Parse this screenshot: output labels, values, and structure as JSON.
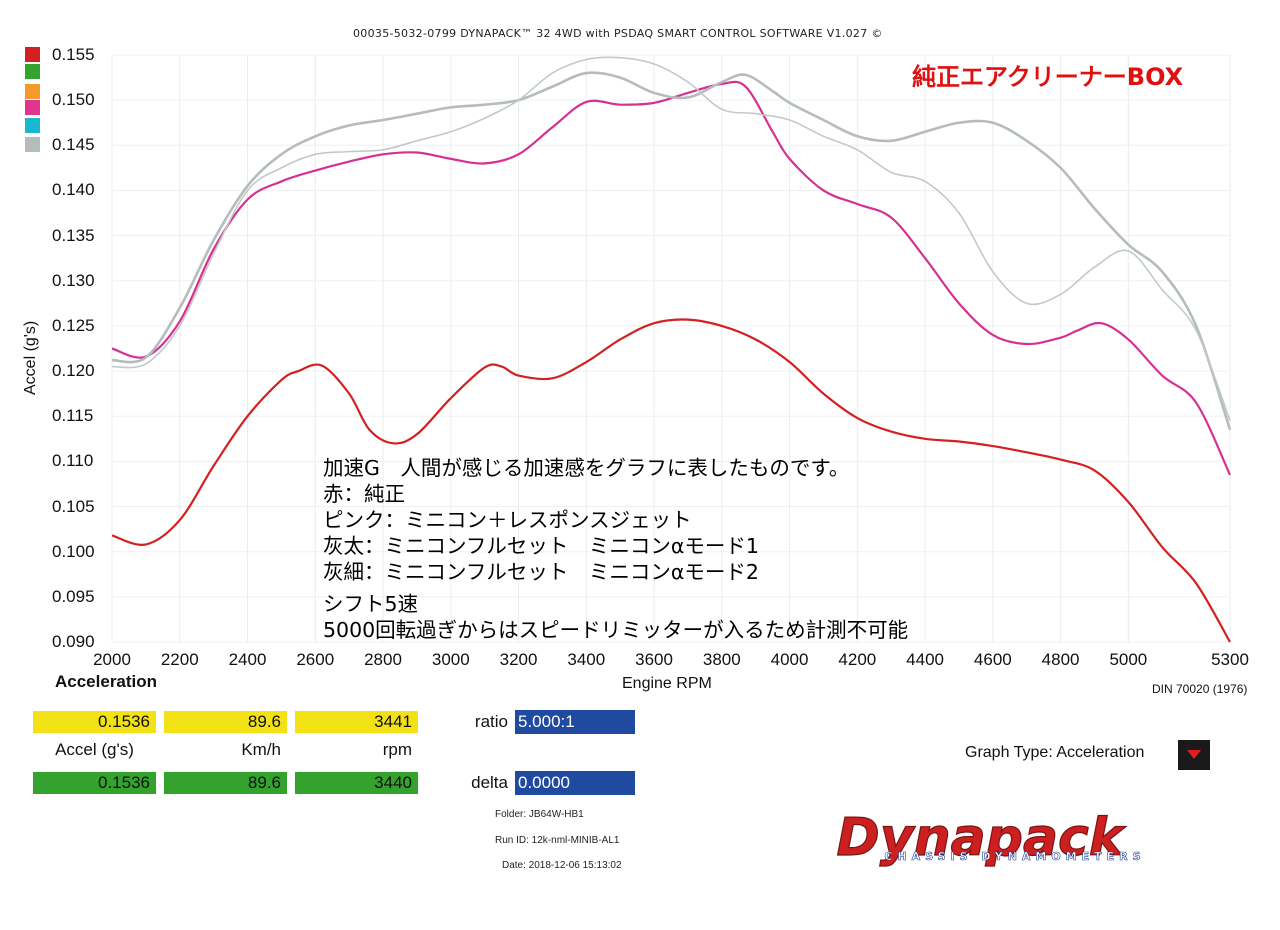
{
  "header": {
    "software": "00035-5032-0799 DYNAPACK™ 32 4WD with PSDAQ SMART CONTROL SOFTWARE V1.027 ©",
    "box_title": "純正エアクリーナーBOX"
  },
  "legend_colors": [
    "#d42020",
    "#33a32e",
    "#f39a2b",
    "#e0358f",
    "#18b8d0",
    "#b4bcbc"
  ],
  "notes": [
    "加速G　人間が感じる加速感をグラフに表したものです。",
    "赤：純正",
    "ピンク：ミニコン＋レスポンスジェット",
    "灰太：ミニコンフルセット　ミニコンαモード1",
    "灰細：ミニコンフルセット　ミニコンαモード2",
    "シフト5速",
    "5000回転過ぎからはスピードリミッターが入るため計測不可能"
  ],
  "readout": {
    "section_label": "Acceleration",
    "row1": {
      "accel": "0.1536",
      "kmh": "89.6",
      "rpm": "3441"
    },
    "row2": {
      "accel": "0.1536",
      "kmh": "89.6",
      "rpm": "3440"
    },
    "units": {
      "accel": "Accel (g's)",
      "kmh": "Km/h",
      "rpm": "rpm"
    },
    "ratio_label": "ratio",
    "ratio_value": "5.000:1",
    "delta_label": "delta",
    "delta_value": "0.0000",
    "folder": "Folder:  JB64W-HB1",
    "run_id": "Run ID:  12k-nml-MINIB-AL1",
    "date": "Date:  2018-12-06 15:13:02"
  },
  "graph_type_label": "Graph Type: Acceleration",
  "standard": "DIN 70020 (1976)",
  "logo": {
    "main": "Dynapack",
    "sub": "CHASSIS DYNAMOMETERS"
  },
  "chart_data": {
    "type": "line",
    "xlabel": "Engine RPM",
    "ylabel": "Accel (g's)",
    "xlim": [
      2000,
      5300
    ],
    "ylim": [
      0.09,
      0.155
    ],
    "x_ticks": [
      2000,
      2200,
      2400,
      2600,
      2800,
      3000,
      3200,
      3400,
      3600,
      3800,
      4000,
      4200,
      4400,
      4600,
      4800,
      5000,
      5300
    ],
    "y_ticks": [
      "0.155",
      "0.150",
      "0.145",
      "0.140",
      "0.135",
      "0.130",
      "0.125",
      "0.120",
      "0.115",
      "0.110",
      "0.105",
      "0.100",
      "0.095",
      "0.090"
    ],
    "grid": true,
    "series": [
      {
        "color": "#d42020",
        "width": 2.2,
        "points": [
          [
            2000,
            0.1018
          ],
          [
            2100,
            0.1008
          ],
          [
            2200,
            0.1035
          ],
          [
            2300,
            0.1095
          ],
          [
            2400,
            0.115
          ],
          [
            2500,
            0.119
          ],
          [
            2550,
            0.12
          ],
          [
            2620,
            0.1206
          ],
          [
            2700,
            0.1175
          ],
          [
            2760,
            0.1135
          ],
          [
            2830,
            0.112
          ],
          [
            2900,
            0.113
          ],
          [
            3000,
            0.117
          ],
          [
            3100,
            0.1204
          ],
          [
            3150,
            0.1205
          ],
          [
            3200,
            0.1195
          ],
          [
            3300,
            0.1192
          ],
          [
            3400,
            0.121
          ],
          [
            3500,
            0.1235
          ],
          [
            3600,
            0.1253
          ],
          [
            3700,
            0.1257
          ],
          [
            3800,
            0.125
          ],
          [
            3900,
            0.1235
          ],
          [
            4000,
            0.121
          ],
          [
            4100,
            0.1175
          ],
          [
            4200,
            0.1148
          ],
          [
            4300,
            0.1133
          ],
          [
            4400,
            0.1125
          ],
          [
            4500,
            0.1122
          ],
          [
            4600,
            0.1117
          ],
          [
            4700,
            0.111
          ],
          [
            4800,
            0.1102
          ],
          [
            4900,
            0.109
          ],
          [
            5000,
            0.1055
          ],
          [
            5100,
            0.1005
          ],
          [
            5200,
            0.0965
          ],
          [
            5300,
            0.09
          ]
        ]
      },
      {
        "color": "#d63191",
        "width": 2.2,
        "points": [
          [
            2000,
            0.1225
          ],
          [
            2100,
            0.1216
          ],
          [
            2200,
            0.1255
          ],
          [
            2300,
            0.1335
          ],
          [
            2400,
            0.139
          ],
          [
            2500,
            0.141
          ],
          [
            2600,
            0.1422
          ],
          [
            2700,
            0.1432
          ],
          [
            2800,
            0.144
          ],
          [
            2900,
            0.1442
          ],
          [
            3000,
            0.1435
          ],
          [
            3100,
            0.143
          ],
          [
            3200,
            0.144
          ],
          [
            3300,
            0.147
          ],
          [
            3400,
            0.1498
          ],
          [
            3500,
            0.1495
          ],
          [
            3600,
            0.1497
          ],
          [
            3700,
            0.1508
          ],
          [
            3800,
            0.1518
          ],
          [
            3870,
            0.1515
          ],
          [
            3950,
            0.1465
          ],
          [
            4000,
            0.1435
          ],
          [
            4100,
            0.14
          ],
          [
            4200,
            0.1385
          ],
          [
            4300,
            0.137
          ],
          [
            4400,
            0.1325
          ],
          [
            4500,
            0.1275
          ],
          [
            4600,
            0.124
          ],
          [
            4700,
            0.123
          ],
          [
            4800,
            0.1237
          ],
          [
            4850,
            0.1245
          ],
          [
            4920,
            0.1253
          ],
          [
            5000,
            0.1235
          ],
          [
            5100,
            0.1195
          ],
          [
            5200,
            0.1165
          ],
          [
            5300,
            0.1085
          ]
        ]
      },
      {
        "color": "#b4bcbc",
        "width": 2.6,
        "points": [
          [
            2000,
            0.1212
          ],
          [
            2100,
            0.1215
          ],
          [
            2200,
            0.127
          ],
          [
            2300,
            0.1345
          ],
          [
            2400,
            0.1405
          ],
          [
            2500,
            0.144
          ],
          [
            2600,
            0.146
          ],
          [
            2700,
            0.1472
          ],
          [
            2800,
            0.1478
          ],
          [
            2900,
            0.1485
          ],
          [
            3000,
            0.1492
          ],
          [
            3100,
            0.1495
          ],
          [
            3200,
            0.15
          ],
          [
            3300,
            0.1515
          ],
          [
            3400,
            0.153
          ],
          [
            3500,
            0.1525
          ],
          [
            3600,
            0.1508
          ],
          [
            3700,
            0.1503
          ],
          [
            3800,
            0.152
          ],
          [
            3870,
            0.1528
          ],
          [
            3950,
            0.151
          ],
          [
            4000,
            0.1497
          ],
          [
            4100,
            0.1478
          ],
          [
            4200,
            0.146
          ],
          [
            4300,
            0.1455
          ],
          [
            4400,
            0.1465
          ],
          [
            4500,
            0.1475
          ],
          [
            4600,
            0.1475
          ],
          [
            4700,
            0.1455
          ],
          [
            4800,
            0.1425
          ],
          [
            4900,
            0.138
          ],
          [
            5000,
            0.134
          ],
          [
            5100,
            0.131
          ],
          [
            5200,
            0.125
          ],
          [
            5300,
            0.1135
          ]
        ]
      },
      {
        "color": "#c3c9c9",
        "width": 1.6,
        "points": [
          [
            2000,
            0.1205
          ],
          [
            2100,
            0.1208
          ],
          [
            2200,
            0.125
          ],
          [
            2300,
            0.133
          ],
          [
            2400,
            0.14
          ],
          [
            2500,
            0.1425
          ],
          [
            2600,
            0.144
          ],
          [
            2700,
            0.1443
          ],
          [
            2800,
            0.1445
          ],
          [
            2900,
            0.1455
          ],
          [
            3000,
            0.1465
          ],
          [
            3100,
            0.148
          ],
          [
            3200,
            0.15
          ],
          [
            3300,
            0.153
          ],
          [
            3400,
            0.1545
          ],
          [
            3500,
            0.1547
          ],
          [
            3600,
            0.154
          ],
          [
            3700,
            0.152
          ],
          [
            3800,
            0.149
          ],
          [
            3900,
            0.1485
          ],
          [
            4000,
            0.1478
          ],
          [
            4100,
            0.146
          ],
          [
            4200,
            0.1445
          ],
          [
            4300,
            0.142
          ],
          [
            4400,
            0.141
          ],
          [
            4500,
            0.1375
          ],
          [
            4600,
            0.131
          ],
          [
            4700,
            0.1275
          ],
          [
            4800,
            0.1285
          ],
          [
            4900,
            0.1315
          ],
          [
            5000,
            0.1333
          ],
          [
            5100,
            0.129
          ],
          [
            5200,
            0.1245
          ],
          [
            5300,
            0.1145
          ]
        ]
      }
    ]
  }
}
